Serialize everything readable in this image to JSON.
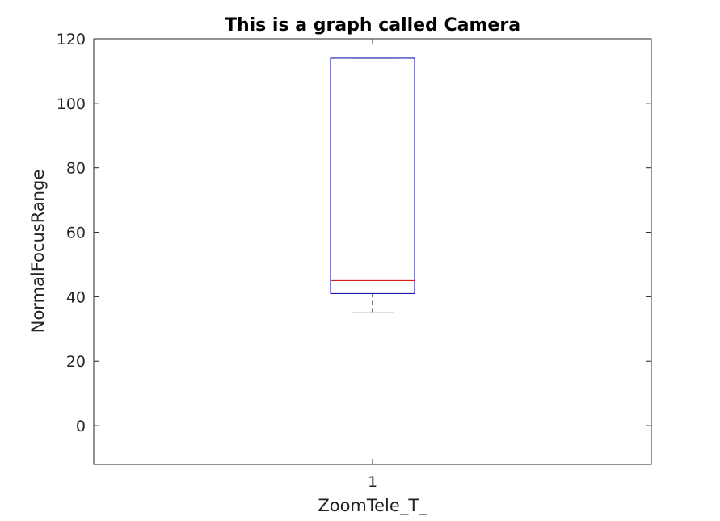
{
  "chart_data": {
    "type": "box",
    "title": "This is a graph called Camera",
    "xlabel": "ZoomTele_T_",
    "ylabel": "NormalFocusRange",
    "categories": [
      "1"
    ],
    "ylim": [
      -12,
      120
    ],
    "yticks": [
      0,
      20,
      40,
      60,
      80,
      100,
      120
    ],
    "grid": false,
    "box": {
      "whisker_low": 35,
      "q1": 41,
      "median": 45,
      "q3": 114,
      "whisker_high": 114
    },
    "colors": {
      "box": "#0000aa",
      "median": "#cc0000",
      "whisker": "#000000",
      "axis": "#262626"
    }
  }
}
